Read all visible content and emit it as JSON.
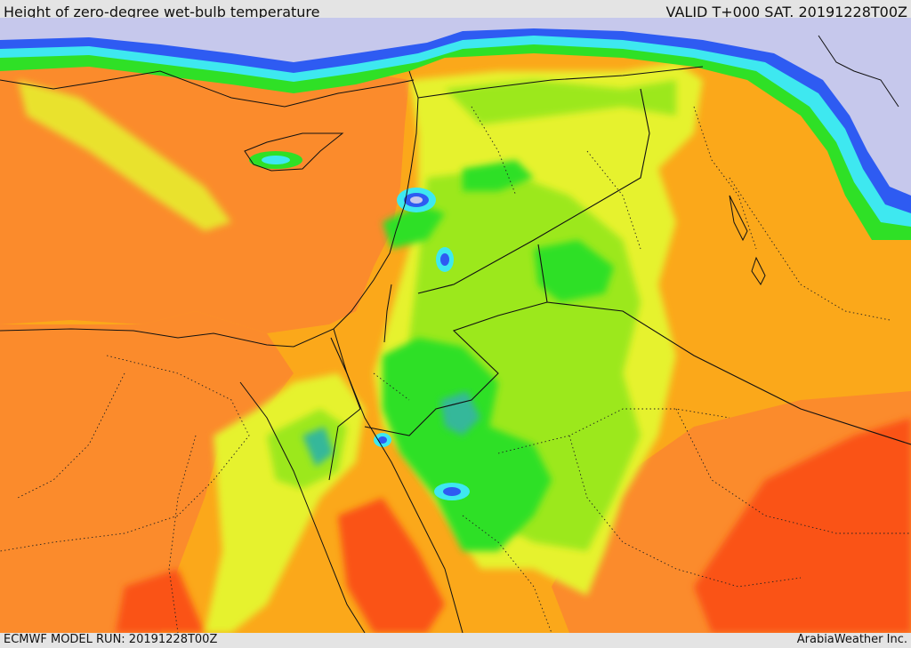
{
  "header": {
    "title": "Height of zero-degree wet-bulb temperature",
    "valid": "VALID T+000 SAT. 20191228T00Z"
  },
  "footer": {
    "model_run": "ECMWF MODEL RUN: 20191228T00Z",
    "credit": "ArabiaWeather Inc."
  },
  "colors": {
    "sea_orange": "#fb8b2c",
    "land_orange": "#fba81a",
    "hot_red": "#fa5218",
    "yellow": "#e6f22e",
    "light_green": "#9ce81f",
    "green": "#2fe026",
    "teal": "#35b89a",
    "cyan": "#3ee8f0",
    "blue": "#2e5bf2",
    "lavender": "#c6c8ec",
    "border": "#111111"
  }
}
